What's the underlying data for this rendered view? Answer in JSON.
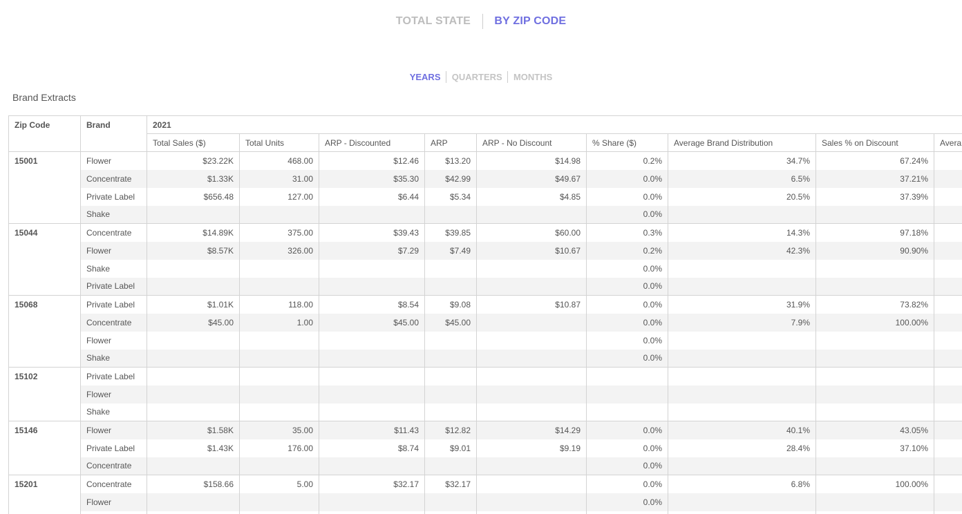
{
  "view_toggle": {
    "total_state": "TOTAL STATE",
    "by_zip_code": "BY ZIP CODE"
  },
  "period_toggle": {
    "years": "YEARS",
    "quarters": "QUARTERS",
    "months": "MONTHS"
  },
  "section_title": "Brand Extracts",
  "colors": {
    "accent": "#6f6fe0",
    "inactive": "#bdbdbd",
    "row_shade": "#f3f3f3",
    "border": "#d3d3d3"
  },
  "table": {
    "header_zip": "Zip Code",
    "header_brand": "Brand",
    "year": "2021",
    "columns": [
      "Total Sales ($)",
      "Total Units",
      "ARP - Discounted",
      "ARP",
      "ARP - No Discount",
      "% Share ($)",
      "Average Brand Distribution",
      "Sales % on Discount",
      "Avera"
    ],
    "groups": [
      {
        "zip": "15001",
        "rows": [
          {
            "brand": "Flower",
            "values": [
              "$23.22K",
              "468.00",
              "$12.46",
              "$13.20",
              "$14.98",
              "0.2%",
              "34.7%",
              "67.24%",
              ""
            ]
          },
          {
            "brand": "Concentrate",
            "values": [
              "$1.33K",
              "31.00",
              "$35.30",
              "$42.99",
              "$49.67",
              "0.0%",
              "6.5%",
              "37.21%",
              ""
            ]
          },
          {
            "brand": "Private Label",
            "values": [
              "$656.48",
              "127.00",
              "$6.44",
              "$5.34",
              "$4.85",
              "0.0%",
              "20.5%",
              "37.39%",
              ""
            ]
          },
          {
            "brand": "Shake",
            "values": [
              "",
              "",
              "",
              "",
              "",
              "0.0%",
              "",
              "",
              ""
            ]
          }
        ]
      },
      {
        "zip": "15044",
        "rows": [
          {
            "brand": "Concentrate",
            "values": [
              "$14.89K",
              "375.00",
              "$39.43",
              "$39.85",
              "$60.00",
              "0.3%",
              "14.3%",
              "97.18%",
              ""
            ]
          },
          {
            "brand": "Flower",
            "values": [
              "$8.57K",
              "326.00",
              "$7.29",
              "$7.49",
              "$10.67",
              "0.2%",
              "42.3%",
              "90.90%",
              ""
            ]
          },
          {
            "brand": "Shake",
            "values": [
              "",
              "",
              "",
              "",
              "",
              "0.0%",
              "",
              "",
              ""
            ]
          },
          {
            "brand": "Private Label",
            "values": [
              "",
              "",
              "",
              "",
              "",
              "0.0%",
              "",
              "",
              ""
            ]
          }
        ]
      },
      {
        "zip": "15068",
        "rows": [
          {
            "brand": "Private Label",
            "values": [
              "$1.01K",
              "118.00",
              "$8.54",
              "$9.08",
              "$10.87",
              "0.0%",
              "31.9%",
              "73.82%",
              ""
            ]
          },
          {
            "brand": "Concentrate",
            "values": [
              "$45.00",
              "1.00",
              "$45.00",
              "$45.00",
              "",
              "0.0%",
              "7.9%",
              "100.00%",
              ""
            ]
          },
          {
            "brand": "Flower",
            "values": [
              "",
              "",
              "",
              "",
              "",
              "0.0%",
              "",
              "",
              ""
            ]
          },
          {
            "brand": "Shake",
            "values": [
              "",
              "",
              "",
              "",
              "",
              "0.0%",
              "",
              "",
              ""
            ]
          }
        ]
      },
      {
        "zip": "15102",
        "rows": [
          {
            "brand": "Private Label",
            "values": [
              "",
              "",
              "",
              "",
              "",
              "",
              "",
              "",
              ""
            ]
          },
          {
            "brand": "Flower",
            "values": [
              "",
              "",
              "",
              "",
              "",
              "",
              "",
              "",
              ""
            ]
          },
          {
            "brand": "Shake",
            "values": [
              "",
              "",
              "",
              "",
              "",
              "",
              "",
              "",
              ""
            ]
          }
        ]
      },
      {
        "zip": "15146",
        "rows": [
          {
            "brand": "Flower",
            "values": [
              "$1.58K",
              "35.00",
              "$11.43",
              "$12.82",
              "$14.29",
              "0.0%",
              "40.1%",
              "43.05%",
              ""
            ]
          },
          {
            "brand": "Private Label",
            "values": [
              "$1.43K",
              "176.00",
              "$8.74",
              "$9.01",
              "$9.19",
              "0.0%",
              "28.4%",
              "37.10%",
              ""
            ]
          },
          {
            "brand": "Concentrate",
            "values": [
              "",
              "",
              "",
              "",
              "",
              "0.0%",
              "",
              "",
              ""
            ]
          }
        ]
      },
      {
        "zip": "15201",
        "rows": [
          {
            "brand": "Concentrate",
            "values": [
              "$158.66",
              "5.00",
              "$32.17",
              "$32.17",
              "",
              "0.0%",
              "6.8%",
              "100.00%",
              ""
            ]
          },
          {
            "brand": "Flower",
            "values": [
              "",
              "",
              "",
              "",
              "",
              "0.0%",
              "",
              "",
              ""
            ]
          },
          {
            "brand": "",
            "values": [
              "",
              "",
              "",
              "",
              "",
              "",
              "",
              "",
              ""
            ]
          }
        ]
      }
    ]
  }
}
